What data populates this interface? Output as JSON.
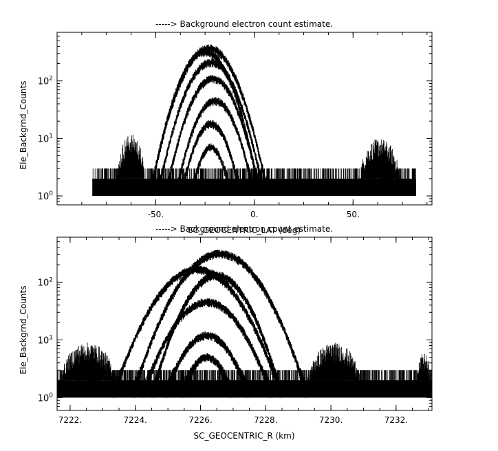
{
  "chart_data": [
    {
      "type": "line",
      "title": "-----> Background electron count estimate.",
      "xlabel": "SC_GEOCENTRIC_LAT (deg)",
      "ylabel": "Ele_Backgrnd_Counts",
      "y_scale": "log",
      "xlim": [
        -100,
        90
      ],
      "ylim": [
        0.7,
        700
      ],
      "x_ticks": [
        -50,
        0,
        50
      ],
      "x_tick_labels": [
        "-50.",
        "0.",
        "50."
      ],
      "y_ticks": [
        1,
        10,
        100
      ],
      "y_tick_labels": [
        "10^0",
        "10^1",
        "10^2"
      ],
      "grid": false,
      "noise_floor": {
        "x_range": [
          -82,
          82
        ],
        "low": 1,
        "high": 3
      },
      "noise_bursts": [
        {
          "x_range": [
            -70,
            -55
          ],
          "peak": 12
        },
        {
          "x_range": [
            52,
            75
          ],
          "peak": 10
        }
      ],
      "series": [
        {
          "center": -23,
          "halfwidth": 30,
          "peak": 370
        },
        {
          "center": -25,
          "halfwidth": 28,
          "peak": 320
        },
        {
          "center": -22,
          "halfwidth": 27,
          "peak": 210
        },
        {
          "center": -21,
          "halfwidth": 24,
          "peak": 110
        },
        {
          "center": -20,
          "halfwidth": 20,
          "peak": 45
        },
        {
          "center": -22,
          "halfwidth": 15,
          "peak": 18
        },
        {
          "center": -22,
          "halfwidth": 10,
          "peak": 7
        }
      ]
    },
    {
      "type": "line",
      "title": "-----> Background electron count estimate.",
      "xlabel": "SC_GEOCENTRIC_R (km)",
      "ylabel": "Ele_Backgrnd_Counts",
      "y_scale": "log",
      "xlim": [
        7221.6,
        7233.1
      ],
      "ylim": [
        0.6,
        600
      ],
      "x_ticks": [
        7222,
        7224,
        7226,
        7228,
        7230,
        7232
      ],
      "x_tick_labels": [
        "7222.",
        "7224.",
        "7226.",
        "7228.",
        "7230.",
        "7232."
      ],
      "y_ticks": [
        1,
        10,
        100
      ],
      "y_tick_labels": [
        "10^0",
        "10^1",
        "10^2"
      ],
      "grid": false,
      "noise_floor": {
        "x_range": [
          7221.6,
          7233.1
        ],
        "low": 1,
        "high": 3
      },
      "noise_bursts": [
        {
          "x_range": [
            7221.6,
            7223.5
          ],
          "peak": 9
        },
        {
          "x_range": [
            7229.2,
            7231.0
          ],
          "peak": 9
        },
        {
          "x_range": [
            7232.6,
            7233.1
          ],
          "peak": 6
        }
      ],
      "series": [
        {
          "center": 7226.6,
          "halfwidth": 2.7,
          "peak": 310
        },
        {
          "center": 7225.9,
          "halfwidth": 2.6,
          "peak": 165
        },
        {
          "center": 7226.5,
          "halfwidth": 2.0,
          "peak": 130
        },
        {
          "center": 7226.2,
          "halfwidth": 2.0,
          "peak": 45
        },
        {
          "center": 7226.2,
          "halfwidth": 1.3,
          "peak": 12
        },
        {
          "center": 7226.2,
          "halfwidth": 0.8,
          "peak": 5
        }
      ]
    }
  ]
}
